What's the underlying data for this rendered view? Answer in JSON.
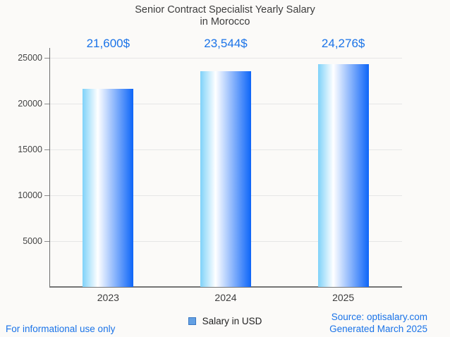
{
  "title": {
    "line1": "Senior Contract Specialist Yearly Salary",
    "line2": "in Morocco"
  },
  "chart_data": {
    "type": "bar",
    "title": "Senior Contract Specialist Yearly Salary in Morocco",
    "categories": [
      "2023",
      "2024",
      "2025"
    ],
    "values": [
      21600,
      23544,
      24276
    ],
    "value_labels": [
      "21,600$",
      "23,544$",
      "24,276$"
    ],
    "series": [
      {
        "name": "Salary in USD",
        "values": [
          21600,
          23544,
          24276
        ]
      }
    ],
    "xlabel": "",
    "ylabel": "",
    "ylim": [
      0,
      25000
    ],
    "yticks": [
      5000,
      10000,
      15000,
      20000,
      25000
    ],
    "grid": "horizontal-only",
    "legend_position": "bottom-center",
    "bar_gradient": [
      "#7fd2f9",
      "#ffffff",
      "#0d65f8"
    ],
    "bar_gradient_white_stop_pct": 30
  },
  "legend": {
    "label": "Salary in USD",
    "swatch_fill": "#63a0e3",
    "swatch_border": "#3b78c3"
  },
  "footer": {
    "disclaimer": "For informational use only",
    "source_line1": "Source: optisalary.com",
    "source_line2": "Generated March 2025"
  },
  "colors": {
    "accent_blue": "#1a73e8",
    "value_label_blue": "#1a73e8",
    "title_text": "#3d3d3d",
    "axis_text": "#444444",
    "grid_line": "#e6e6e6",
    "axis_line": "#6e6e6e",
    "background": "#fbfaf8"
  }
}
